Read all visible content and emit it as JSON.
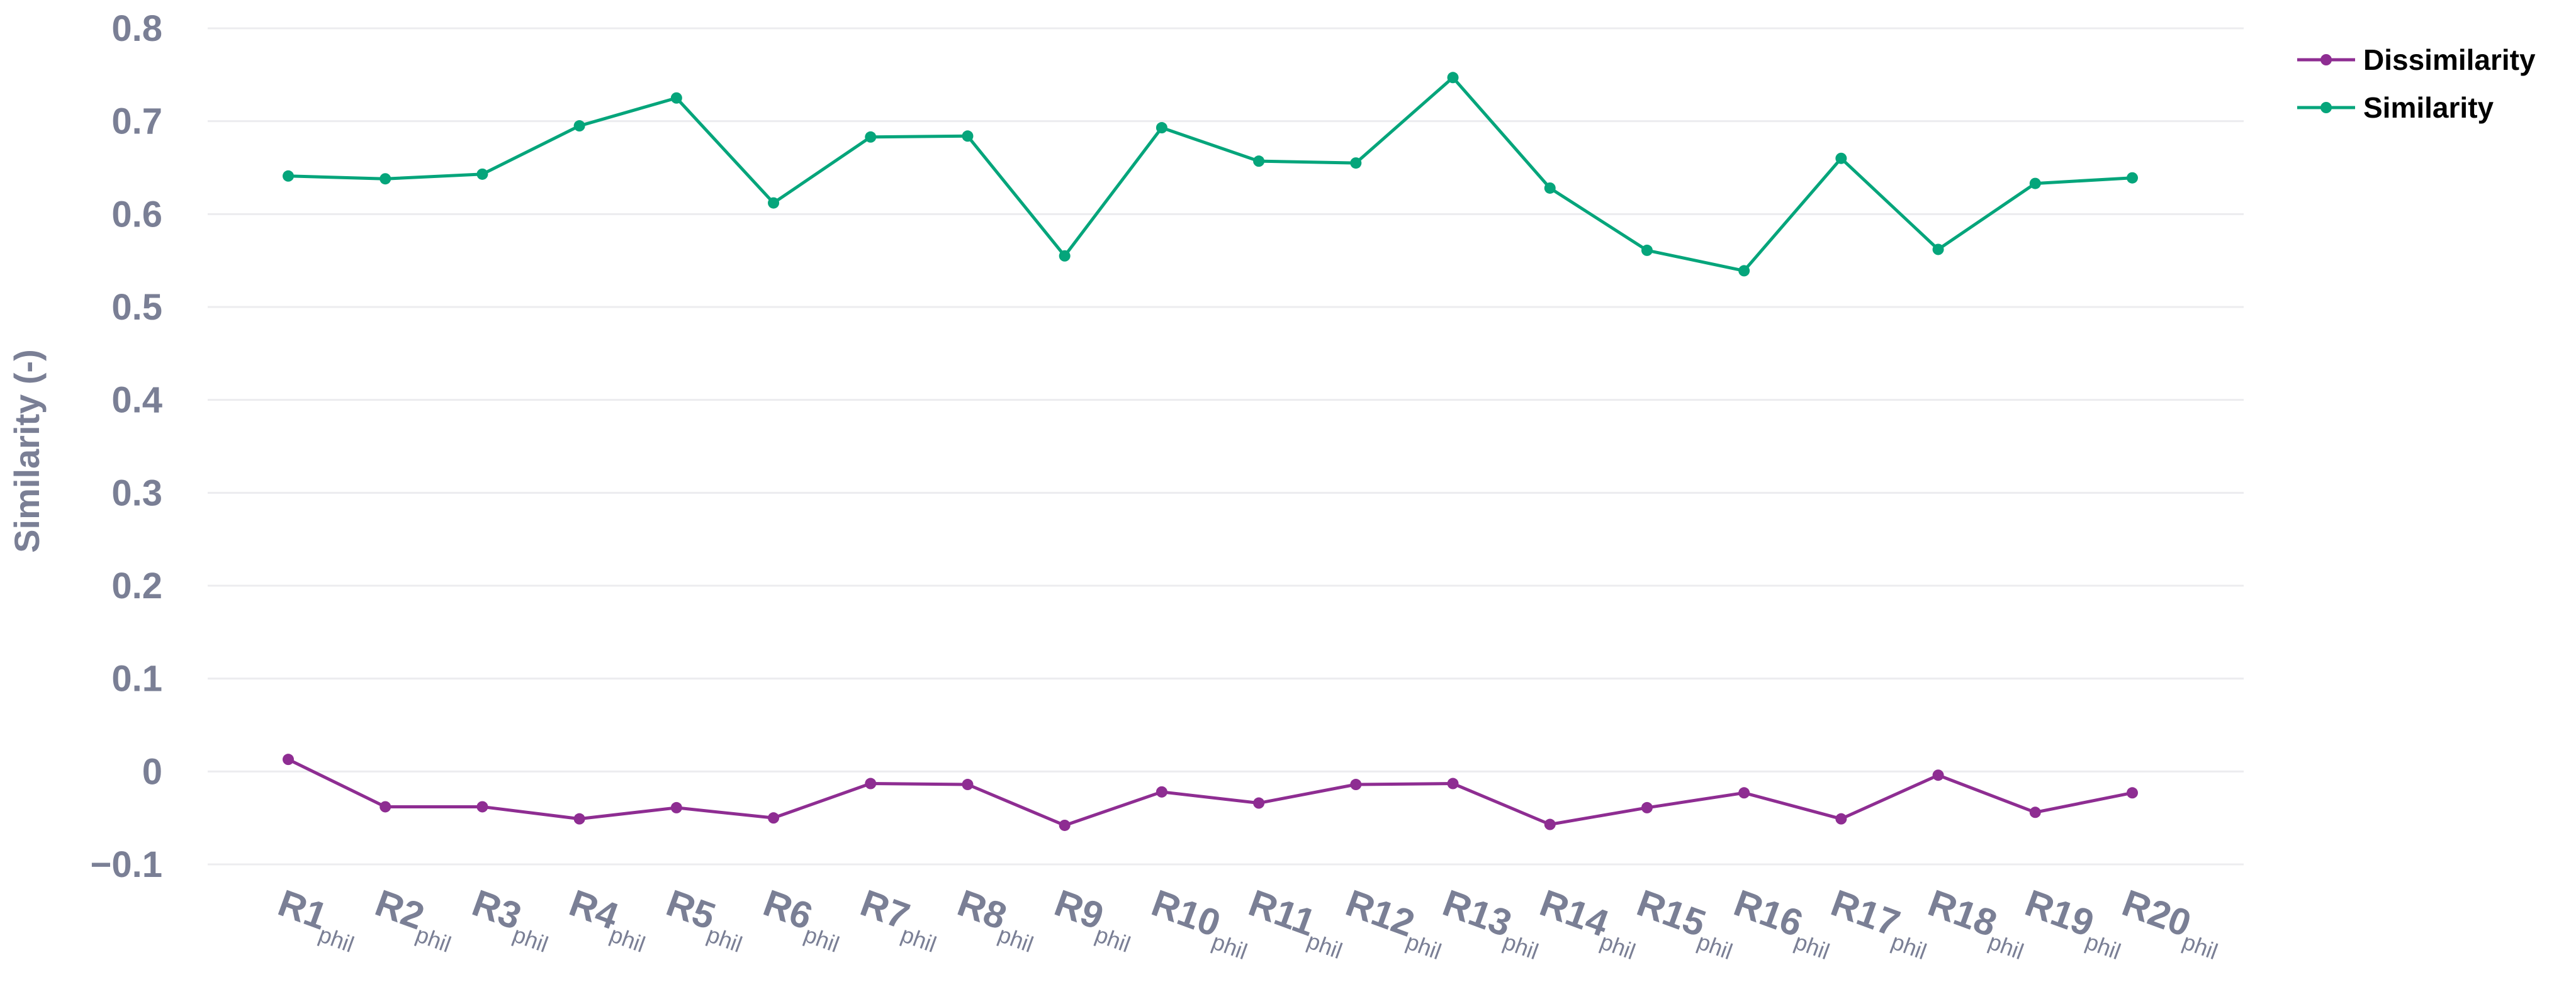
{
  "chart_data": {
    "type": "line",
    "title": "",
    "xlabel": "",
    "ylabel": "Similarity (-)",
    "categories": [
      {
        "main": "R1",
        "sub": "phil"
      },
      {
        "main": "R2",
        "sub": "phil"
      },
      {
        "main": "R3",
        "sub": "phil"
      },
      {
        "main": "R4",
        "sub": "phil"
      },
      {
        "main": "R5",
        "sub": "phil"
      },
      {
        "main": "R6",
        "sub": "phil"
      },
      {
        "main": "R7",
        "sub": "phil"
      },
      {
        "main": "R8",
        "sub": "phil"
      },
      {
        "main": "R9",
        "sub": "phil"
      },
      {
        "main": "R10",
        "sub": "phil"
      },
      {
        "main": "R11",
        "sub": "phil"
      },
      {
        "main": "R12",
        "sub": "phil"
      },
      {
        "main": "R13",
        "sub": "phil"
      },
      {
        "main": "R14",
        "sub": "phil"
      },
      {
        "main": "R15",
        "sub": "phil"
      },
      {
        "main": "R16",
        "sub": "phil"
      },
      {
        "main": "R17",
        "sub": "phil"
      },
      {
        "main": "R18",
        "sub": "phil"
      },
      {
        "main": "R19",
        "sub": "phil"
      },
      {
        "main": "R20",
        "sub": "phil"
      }
    ],
    "ylim": [
      -0.12,
      0.8
    ],
    "yticks": [
      -0.1,
      0,
      0.1,
      0.2,
      0.3,
      0.4,
      0.5,
      0.6,
      0.7,
      0.8
    ],
    "ytick_labels": [
      "−0.1",
      "0",
      "0.1",
      "0.2",
      "0.3",
      "0.4",
      "0.5",
      "0.6",
      "0.7",
      "0.8"
    ],
    "grid": true,
    "legend_position": "top-right",
    "series": [
      {
        "name": "Dissimilarity",
        "color": "#8e2d92",
        "values": [
          0.013,
          -0.038,
          -0.038,
          -0.051,
          -0.039,
          -0.05,
          -0.013,
          -0.014,
          -0.058,
          -0.022,
          -0.034,
          -0.014,
          -0.013,
          -0.057,
          -0.039,
          -0.023,
          -0.051,
          -0.004,
          -0.044,
          -0.023
        ]
      },
      {
        "name": "Similarity",
        "color": "#05a57b",
        "values": [
          0.641,
          0.638,
          0.643,
          0.695,
          0.725,
          0.612,
          0.683,
          0.684,
          0.555,
          0.693,
          0.657,
          0.655,
          0.747,
          0.628,
          0.561,
          0.539,
          0.66,
          0.562,
          0.633,
          0.639
        ]
      }
    ]
  }
}
